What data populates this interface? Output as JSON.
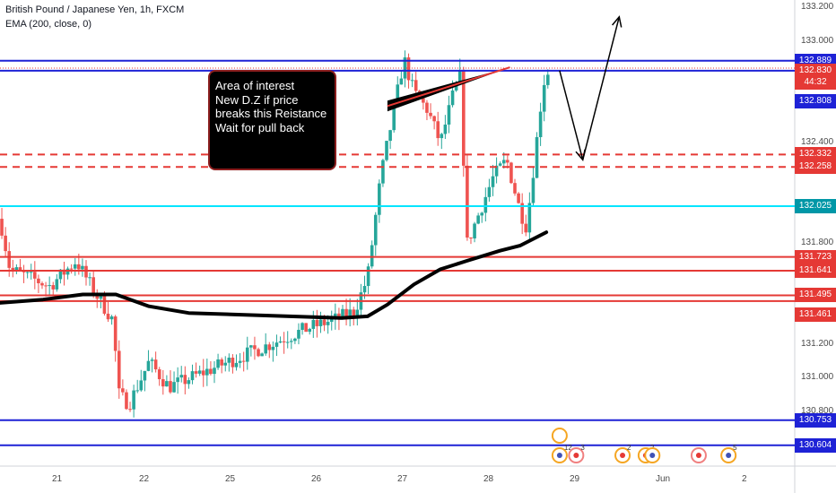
{
  "legend": {
    "symbol_line": "British Pound / Japanese Yen, 1h, FXCM",
    "indicator_line": "EMA (200, close, 0)"
  },
  "annotation": {
    "lines": [
      "Area of interest",
      "New D.Z if price",
      "breaks this Reistance",
      "Wait for pull back"
    ]
  },
  "price_axis": {
    "ticks": [
      "133.200",
      "133.000",
      "132.400",
      "131.800",
      "131.200",
      "131.000",
      "130.800"
    ]
  },
  "time_axis": {
    "ticks": [
      "21",
      "22",
      "25",
      "26",
      "27",
      "28",
      "29",
      "Jun",
      "2"
    ]
  },
  "price_tags": [
    {
      "label": "132.889",
      "price": 132.889,
      "color": "#1e22d6"
    },
    {
      "label": "132.830",
      "price": 132.83,
      "color": "#e53935"
    },
    {
      "label": "44:32",
      "price": 132.76,
      "color": "#e53935"
    },
    {
      "label": "132.808",
      "price": 132.65,
      "color": "#1e22d6"
    },
    {
      "label": "132.332",
      "price": 132.332,
      "color": "#e53935"
    },
    {
      "label": "132.258",
      "price": 132.258,
      "color": "#e53935"
    },
    {
      "label": "132.025",
      "price": 132.025,
      "color": "#0097a7"
    },
    {
      "label": "131.723",
      "price": 131.723,
      "color": "#e53935"
    },
    {
      "label": "131.641",
      "price": 131.641,
      "color": "#e53935"
    },
    {
      "label": "131.495",
      "price": 131.495,
      "color": "#e53935"
    },
    {
      "label": "131.461",
      "price": 131.38,
      "color": "#e53935"
    },
    {
      "label": "130.753",
      "price": 130.753,
      "color": "#1e22d6"
    },
    {
      "label": "130.604",
      "price": 130.604,
      "color": "#1e22d6"
    }
  ],
  "event_markers": [
    {
      "day": 28.8,
      "badge": "12",
      "kind": "uk"
    },
    {
      "day": 29.05,
      "badge": "3",
      "kind": "red"
    },
    {
      "day": 29.75,
      "badge": "2",
      "kind": "orange"
    },
    {
      "day": 30.1,
      "badge": "2",
      "kind": "orange"
    },
    {
      "day": 30.2,
      "badge": "",
      "kind": "uk"
    },
    {
      "day": 30.9,
      "badge": "",
      "kind": "red"
    },
    {
      "day": 31.35,
      "badge": "5",
      "kind": "uk"
    }
  ],
  "chart_data": {
    "type": "candlestick",
    "title": "British Pound / Japanese Yen, 1h, FXCM",
    "ylim": [
      130.48,
      133.25
    ],
    "x_range_days": [
      20.35,
      32.35
    ],
    "horizontal_levels": [
      {
        "price": 132.889,
        "color": "#1e22d6",
        "style": "solid"
      },
      {
        "price": 132.83,
        "color": "#1e22d6",
        "style": "solid"
      },
      {
        "price": 132.332,
        "color": "#e53935",
        "style": "dashed"
      },
      {
        "price": 132.258,
        "color": "#e53935",
        "style": "dashed"
      },
      {
        "price": 132.025,
        "color": "#00e5ff",
        "style": "solid"
      },
      {
        "price": 131.723,
        "color": "#e53935",
        "style": "solid"
      },
      {
        "price": 131.641,
        "color": "#e53935",
        "style": "solid"
      },
      {
        "price": 131.495,
        "color": "#e53935",
        "style": "solid"
      },
      {
        "price": 131.461,
        "color": "#e53935",
        "style": "solid"
      },
      {
        "price": 130.753,
        "color": "#1e22d6",
        "style": "solid"
      },
      {
        "price": 130.604,
        "color": "#1e22d6",
        "style": "solid"
      }
    ],
    "ema_200": [
      [
        20.35,
        131.45
      ],
      [
        21.0,
        131.47
      ],
      [
        21.6,
        131.5
      ],
      [
        22.1,
        131.5
      ],
      [
        22.6,
        131.43
      ],
      [
        23.2,
        131.39
      ],
      [
        25.5,
        131.36
      ],
      [
        25.9,
        131.37
      ],
      [
        26.2,
        131.44
      ],
      [
        26.6,
        131.56
      ],
      [
        27.0,
        131.65
      ],
      [
        27.4,
        131.7
      ],
      [
        27.9,
        131.76
      ],
      [
        28.2,
        131.79
      ],
      [
        28.6,
        131.87
      ]
    ],
    "close_path": [
      [
        20.35,
        131.95
      ],
      [
        20.5,
        131.65
      ],
      [
        20.8,
        131.6
      ],
      [
        21.1,
        131.55
      ],
      [
        21.5,
        131.7
      ],
      [
        21.8,
        131.5
      ],
      [
        22.05,
        131.35
      ],
      [
        22.15,
        130.9
      ],
      [
        22.3,
        130.85
      ],
      [
        22.6,
        131.1
      ],
      [
        22.9,
        130.95
      ],
      [
        25.0,
        131.3
      ],
      [
        25.4,
        131.35
      ],
      [
        25.7,
        131.4
      ],
      [
        25.9,
        131.6
      ],
      [
        26.1,
        132.2
      ],
      [
        26.3,
        132.6
      ],
      [
        26.45,
        132.9
      ],
      [
        26.6,
        132.7
      ],
      [
        26.8,
        132.6
      ],
      [
        27.0,
        132.4
      ],
      [
        27.2,
        132.7
      ],
      [
        27.3,
        132.8
      ],
      [
        27.4,
        131.8
      ],
      [
        27.55,
        131.95
      ],
      [
        27.8,
        132.2
      ],
      [
        28.0,
        132.3
      ],
      [
        28.2,
        132.0
      ],
      [
        28.3,
        131.9
      ],
      [
        28.45,
        132.4
      ],
      [
        28.55,
        132.75
      ],
      [
        28.65,
        132.85
      ]
    ],
    "forecast_path": [
      [
        28.8,
        132.83
      ],
      [
        29.15,
        132.3
      ],
      [
        29.7,
        133.15
      ]
    ],
    "resistance_marker": {
      "from": [
        26.2,
        132.62
      ],
      "to": [
        28.05,
        132.85
      ]
    }
  }
}
